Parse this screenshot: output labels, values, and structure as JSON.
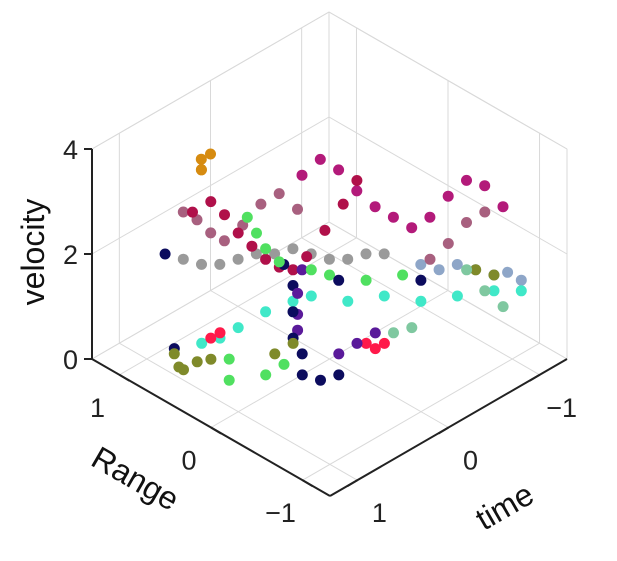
{
  "chart_data": {
    "type": "scatter3d",
    "xlabel": "Range",
    "ylabel": "time",
    "zlabel": "velocity",
    "xlim": [
      -1.3,
      1.3
    ],
    "ylim": [
      -1.3,
      1.3
    ],
    "zlim": [
      0,
      4
    ],
    "x_ticks": [
      1,
      0,
      -1
    ],
    "x_tick_labels": [
      "1",
      "0",
      "−1"
    ],
    "y_ticks": [
      -1,
      0,
      1
    ],
    "y_tick_labels": [
      "−1",
      "0",
      "1"
    ],
    "z_ticks": [
      0,
      2,
      4
    ],
    "z_tick_labels": [
      "0",
      "2",
      "4"
    ],
    "grid": true,
    "view": "isometric",
    "point_colors": {
      "crimson": "#b0104a",
      "magenta": "#b31a7a",
      "mauve": "#a8607f",
      "grey": "#9a9a9a",
      "cyan": "#40e8c8",
      "green": "#50e060",
      "navy": "#0c0c5e",
      "purple": "#5a1a9a",
      "olive": "#7f8a2a",
      "orange": "#d68b10",
      "red": "#ff1a4a",
      "steel": "#8ea6c8",
      "seafoam": "#7fc8a0"
    },
    "series": [
      {
        "color": "crimson",
        "points": [
          [
            0.6,
            0.9,
            3.1
          ],
          [
            0.5,
            0.8,
            3.3
          ],
          [
            0.45,
            0.7,
            3.0
          ],
          [
            0.4,
            0.6,
            2.6
          ],
          [
            0.35,
            0.5,
            2.3
          ],
          [
            0.3,
            0.4,
            2.0
          ],
          [
            0.25,
            0.3,
            1.8
          ],
          [
            0.2,
            0.2,
            1.7
          ],
          [
            0.15,
            0.1,
            1.9
          ],
          [
            0.05,
            0.0,
            2.4
          ],
          [
            -0.05,
            -0.1,
            2.9
          ],
          [
            -0.1,
            -0.2,
            3.3
          ]
        ]
      },
      {
        "color": "magenta",
        "points": [
          [
            0.3,
            0.0,
            3.2
          ],
          [
            0.2,
            -0.1,
            3.5
          ],
          [
            0.1,
            -0.2,
            3.3
          ],
          [
            0.0,
            -0.3,
            2.9
          ],
          [
            -0.1,
            -0.4,
            2.6
          ],
          [
            -0.2,
            -0.5,
            2.4
          ],
          [
            -0.3,
            -0.6,
            2.2
          ],
          [
            -0.4,
            -0.7,
            2.4
          ],
          [
            -0.5,
            -0.8,
            2.8
          ],
          [
            -0.6,
            -0.9,
            3.1
          ],
          [
            -0.7,
            -1.0,
            3.0
          ],
          [
            -0.8,
            -1.1,
            2.6
          ]
        ]
      },
      {
        "color": "mauve",
        "points": [
          [
            0.9,
            0.7,
            2.6
          ],
          [
            0.85,
            0.6,
            2.4
          ],
          [
            0.8,
            0.5,
            2.1
          ],
          [
            0.75,
            0.4,
            1.9
          ],
          [
            0.65,
            0.3,
            2.2
          ],
          [
            0.55,
            0.2,
            2.6
          ],
          [
            0.45,
            0.1,
            2.8
          ],
          [
            0.35,
            0.0,
            2.5
          ],
          [
            -0.6,
            -0.5,
            2.0
          ],
          [
            -0.7,
            -0.6,
            2.3
          ],
          [
            -0.8,
            -0.7,
            2.7
          ],
          [
            -0.9,
            -0.8,
            2.9
          ]
        ]
      },
      {
        "color": "grey",
        "points": [
          [
            1.0,
            0.6,
            1.5
          ],
          [
            0.9,
            0.5,
            1.4
          ],
          [
            0.8,
            0.4,
            1.4
          ],
          [
            0.7,
            0.3,
            1.5
          ],
          [
            0.6,
            0.2,
            1.6
          ],
          [
            0.5,
            0.1,
            1.6
          ],
          [
            0.4,
            0.0,
            1.7
          ],
          [
            0.3,
            -0.1,
            1.6
          ],
          [
            0.2,
            -0.2,
            1.5
          ],
          [
            0.1,
            -0.3,
            1.5
          ],
          [
            0.0,
            -0.4,
            1.6
          ],
          [
            -0.1,
            -0.5,
            1.6
          ]
        ]
      },
      {
        "color": "cyan",
        "points": [
          [
            0.5,
            0.9,
            0.7
          ],
          [
            0.4,
            0.8,
            0.8
          ],
          [
            0.3,
            0.7,
            1.0
          ],
          [
            0.2,
            0.5,
            1.2
          ],
          [
            0.1,
            0.3,
            1.3
          ],
          [
            0.0,
            0.2,
            1.4
          ],
          [
            -0.2,
            0.0,
            1.3
          ],
          [
            -0.4,
            -0.2,
            1.4
          ],
          [
            -0.6,
            -0.4,
            1.3
          ],
          [
            -0.8,
            -0.6,
            1.4
          ],
          [
            -1.0,
            -0.8,
            1.5
          ],
          [
            -1.1,
            -1.0,
            1.4
          ]
        ]
      },
      {
        "color": "green",
        "points": [
          [
            0.3,
            0.6,
            3.0
          ],
          [
            0.25,
            0.55,
            2.7
          ],
          [
            0.2,
            0.5,
            2.4
          ],
          [
            0.15,
            0.4,
            2.1
          ],
          [
            0.0,
            0.2,
            1.9
          ],
          [
            -0.1,
            0.1,
            1.8
          ],
          [
            -0.3,
            -0.1,
            1.7
          ],
          [
            -0.5,
            -0.3,
            1.8
          ],
          [
            0.2,
            0.9,
            0.7
          ],
          [
            0.1,
            1.0,
            0.5
          ],
          [
            -0.1,
            0.8,
            0.6
          ],
          [
            -0.2,
            0.7,
            0.8
          ]
        ]
      },
      {
        "color": "navy",
        "points": [
          [
            0.2,
            0.3,
            1.9
          ],
          [
            0.1,
            0.3,
            1.6
          ],
          [
            0.0,
            0.4,
            1.3
          ],
          [
            -0.1,
            0.5,
            1.0
          ],
          [
            -0.2,
            0.5,
            0.8
          ],
          [
            -0.3,
            0.6,
            0.6
          ],
          [
            -0.4,
            0.5,
            0.5
          ],
          [
            -0.5,
            0.4,
            0.6
          ],
          [
            0.9,
            0.9,
            2.0
          ],
          [
            0.7,
            1.0,
            0.5
          ],
          [
            -0.7,
            -0.3,
            1.9
          ],
          [
            -0.3,
            0.2,
            2.0
          ]
        ]
      },
      {
        "color": "purple",
        "points": [
          [
            0.1,
            0.2,
            1.8
          ],
          [
            0.05,
            0.3,
            1.5
          ],
          [
            0.0,
            0.35,
            1.2
          ],
          [
            -0.05,
            0.4,
            1.0
          ],
          [
            -0.4,
            0.3,
            0.8
          ],
          [
            -0.5,
            0.2,
            1.0
          ],
          [
            -0.6,
            0.1,
            1.2
          ]
        ]
      },
      {
        "color": "olive",
        "points": [
          [
            0.6,
            1.1,
            0.6
          ],
          [
            0.5,
            1.15,
            0.5
          ],
          [
            0.4,
            1.2,
            0.6
          ],
          [
            0.3,
            1.15,
            0.8
          ],
          [
            0.2,
            1.1,
            0.9
          ],
          [
            -0.1,
            0.7,
            0.9
          ],
          [
            -0.2,
            0.6,
            1.1
          ],
          [
            -0.9,
            -0.7,
            1.9
          ],
          [
            -1.0,
            -0.8,
            1.8
          ]
        ]
      },
      {
        "color": "orange",
        "points": [
          [
            1.3,
            0.1,
            2.4
          ],
          [
            1.35,
            0.05,
            2.3
          ],
          [
            1.4,
            0.0,
            2.4
          ],
          [
            1.3,
            0.0,
            2.6
          ]
        ]
      },
      {
        "color": "red",
        "points": [
          [
            -0.5,
            0.1,
            0.9
          ],
          [
            -0.55,
            0.05,
            0.8
          ],
          [
            -0.6,
            0.0,
            0.9
          ],
          [
            0.4,
            0.9,
            0.9
          ],
          [
            0.35,
            0.85,
            1.0
          ]
        ]
      },
      {
        "color": "steel",
        "points": [
          [
            -0.6,
            -0.8,
            1.6
          ],
          [
            -0.7,
            -0.9,
            1.5
          ],
          [
            -0.8,
            -1.0,
            1.4
          ],
          [
            -0.9,
            -1.05,
            1.5
          ],
          [
            -1.0,
            -1.1,
            1.4
          ],
          [
            -0.5,
            -0.7,
            1.5
          ],
          [
            -0.4,
            -0.6,
            1.6
          ]
        ]
      },
      {
        "color": "seafoam",
        "points": [
          [
            -0.9,
            -0.6,
            2.0
          ],
          [
            -1.0,
            -0.7,
            1.6
          ],
          [
            -1.1,
            -0.8,
            1.3
          ],
          [
            -0.7,
            -0.2,
            1.1
          ],
          [
            -0.6,
            -0.1,
            1.0
          ]
        ]
      }
    ]
  }
}
